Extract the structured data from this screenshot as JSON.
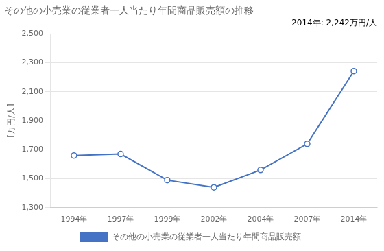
{
  "chart_data": {
    "type": "line",
    "title": "その他の小売業の従業者一人当たり年間商品販売額の推移",
    "subtitle": "2014年: 2,242万円/人",
    "y_label": "[万円/人]",
    "categories": [
      "1994年",
      "1997年",
      "1999年",
      "2002年",
      "2004年",
      "2007年",
      "2014年"
    ],
    "series": [
      {
        "name": "その他の小売業の従業者一人当たり年間商品販売額",
        "color": "#4472C4",
        "values": [
          1660,
          1670,
          1490,
          1440,
          1560,
          1740,
          2242
        ]
      }
    ],
    "ylim": [
      1300,
      2500
    ],
    "yticks": [
      {
        "value": 1300,
        "label": "1,300"
      },
      {
        "value": 1500,
        "label": "1,500"
      },
      {
        "value": 1700,
        "label": "1,700"
      },
      {
        "value": 1900,
        "label": "1,900"
      },
      {
        "value": 2100,
        "label": "2,100"
      },
      {
        "value": 2300,
        "label": "2,300"
      },
      {
        "value": 2500,
        "label": "2,500"
      }
    ],
    "grid": "y",
    "legend": "bottom",
    "marker": "circle",
    "line_style": "solid"
  }
}
